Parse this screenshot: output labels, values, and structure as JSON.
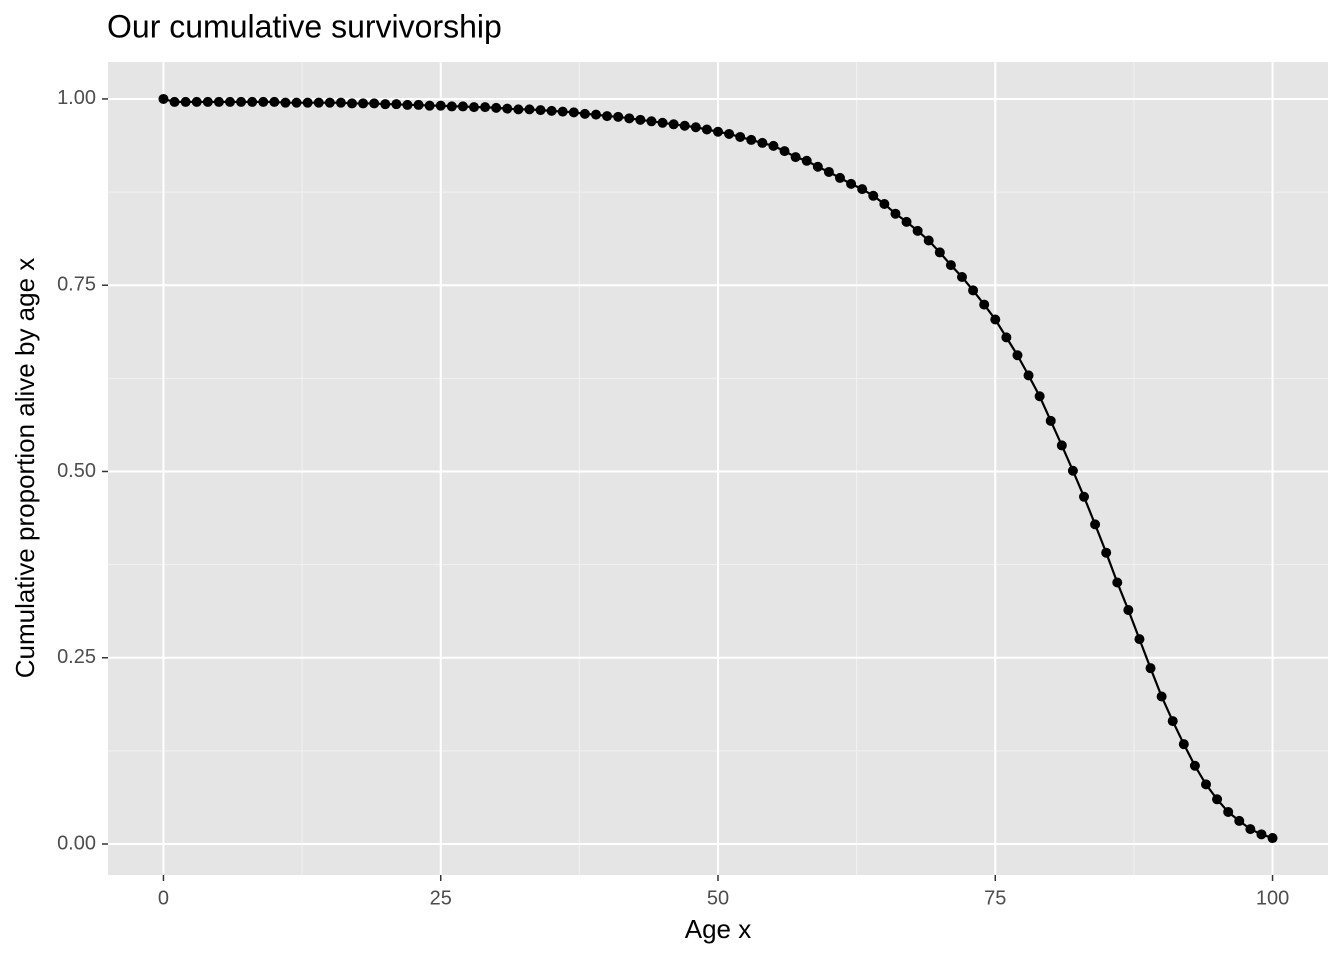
{
  "chart_data": {
    "type": "line",
    "title": "Our cumulative survivorship",
    "x_label": "Age x",
    "y_label": "Cumulative proportion alive by age x",
    "x": [
      0,
      1,
      2,
      3,
      4,
      5,
      6,
      7,
      8,
      9,
      10,
      11,
      12,
      13,
      14,
      15,
      16,
      17,
      18,
      19,
      20,
      21,
      22,
      23,
      24,
      25,
      26,
      27,
      28,
      29,
      30,
      31,
      32,
      33,
      34,
      35,
      36,
      37,
      38,
      39,
      40,
      41,
      42,
      43,
      44,
      45,
      46,
      47,
      48,
      49,
      50,
      51,
      52,
      53,
      54,
      55,
      56,
      57,
      58,
      59,
      60,
      61,
      62,
      63,
      64,
      65,
      66,
      67,
      68,
      69,
      70,
      71,
      72,
      73,
      74,
      75,
      76,
      77,
      78,
      79,
      80,
      81,
      82,
      83,
      84,
      85,
      86,
      87,
      88,
      89,
      90,
      91,
      92,
      93,
      94,
      95,
      96,
      97,
      98,
      99,
      100
    ],
    "series": [
      {
        "color": "#000000",
        "values": [
          1.0,
          0.996,
          0.996,
          0.996,
          0.996,
          0.996,
          0.996,
          0.996,
          0.996,
          0.996,
          0.996,
          0.995,
          0.995,
          0.995,
          0.995,
          0.995,
          0.995,
          0.994,
          0.994,
          0.994,
          0.993,
          0.993,
          0.992,
          0.992,
          0.991,
          0.991,
          0.99,
          0.99,
          0.989,
          0.989,
          0.988,
          0.987,
          0.986,
          0.986,
          0.985,
          0.984,
          0.983,
          0.982,
          0.98,
          0.979,
          0.977,
          0.976,
          0.974,
          0.972,
          0.97,
          0.968,
          0.966,
          0.964,
          0.962,
          0.959,
          0.956,
          0.953,
          0.949,
          0.945,
          0.941,
          0.937,
          0.93,
          0.922,
          0.917,
          0.909,
          0.902,
          0.894,
          0.886,
          0.879,
          0.87,
          0.859,
          0.846,
          0.835,
          0.823,
          0.81,
          0.794,
          0.777,
          0.761,
          0.743,
          0.724,
          0.704,
          0.68,
          0.656,
          0.629,
          0.601,
          0.568,
          0.535,
          0.501,
          0.466,
          0.429,
          0.391,
          0.351,
          0.314,
          0.275,
          0.236,
          0.198,
          0.165,
          0.134,
          0.105,
          0.08,
          0.06,
          0.043,
          0.031,
          0.02,
          0.013,
          0.008
        ]
      }
    ],
    "xlim": [
      -5,
      105
    ],
    "xticks": [
      0,
      25,
      50,
      75,
      100
    ],
    "ylim": [
      -0.0416,
      1.0496
    ],
    "yticks": [
      {
        "value": 0,
        "label": "0.00"
      },
      {
        "value": 0.25,
        "label": "0.25"
      },
      {
        "value": 0.5,
        "label": "0.50"
      },
      {
        "value": 0.75,
        "label": "0.75"
      },
      {
        "value": 1,
        "label": "1.00"
      }
    ],
    "grid": true,
    "points": true
  }
}
